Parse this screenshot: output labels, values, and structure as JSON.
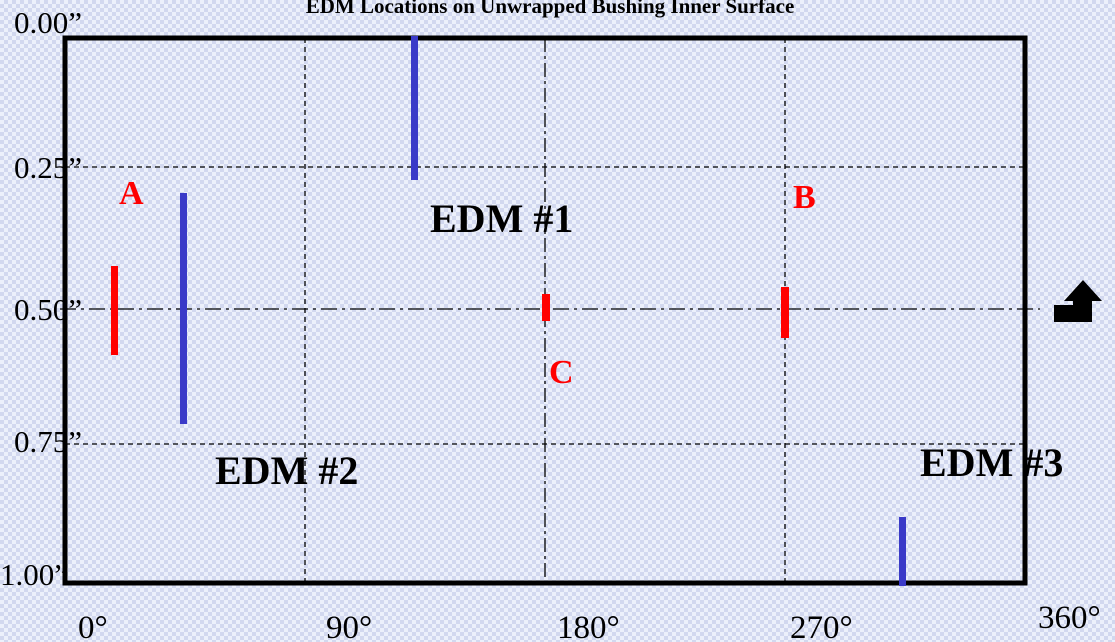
{
  "title": "EDM Locations on Unwrapped Bushing Inner Surface",
  "y_tick_labels": [
    "0.00”",
    "0.25”",
    "0.50”",
    "0.75”",
    "1.00”"
  ],
  "x_tick_labels": [
    "0°",
    "90°",
    "180°",
    "270°",
    "360°"
  ],
  "edm_labels": [
    "EDM #1",
    "EDM #2",
    "EDM #3"
  ],
  "point_labels": [
    "A",
    "B",
    "C"
  ],
  "icons": {
    "arrow": "turn-up-arrow-icon"
  },
  "colors": {
    "edm_slot": "#3a3ac8",
    "location_mark": "#ff0000",
    "frame": "#000000",
    "text_red": "#ff0000"
  }
}
